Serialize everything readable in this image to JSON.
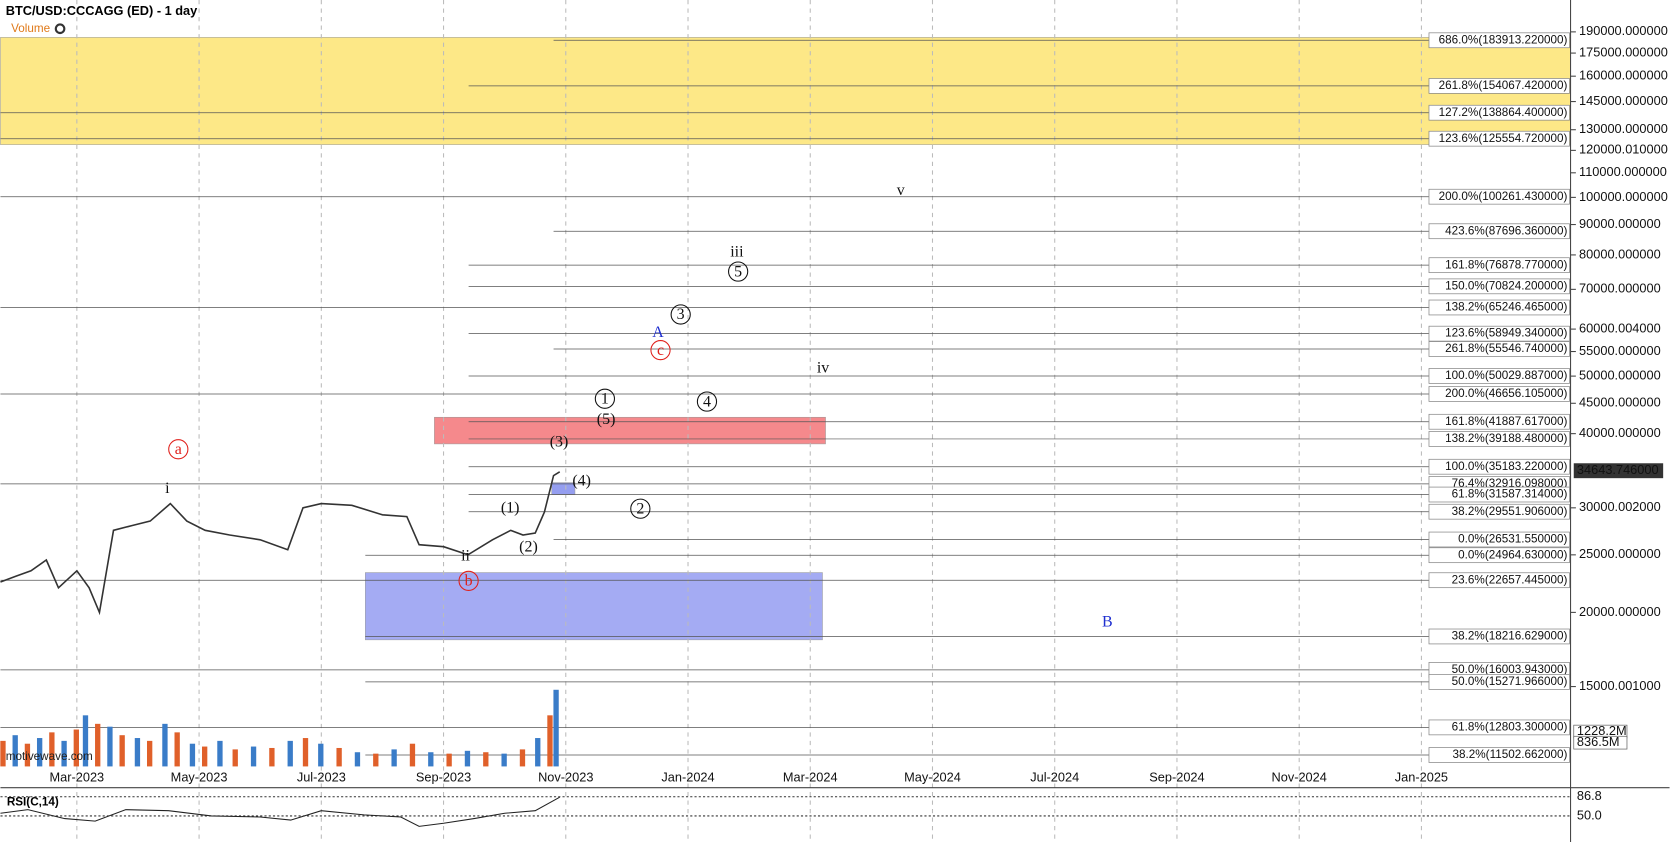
{
  "chart_data": {
    "type": "line",
    "title": "BTC/USD:CCCAGG (ED) - 1 day",
    "legend": "Volume",
    "watermark": "motivewave.com",
    "log_scale": true,
    "xlim": [
      -1.25,
      24.44
    ],
    "xticks": [
      {
        "value": 0,
        "label": "Mar-2023"
      },
      {
        "value": 2,
        "label": "May-2023"
      },
      {
        "value": 4,
        "label": "Jul-2023"
      },
      {
        "value": 6,
        "label": "Sep-2023"
      },
      {
        "value": 8,
        "label": "Nov-2023"
      },
      {
        "value": 10,
        "label": "Jan-2024"
      },
      {
        "value": 12,
        "label": "Mar-2024"
      },
      {
        "value": 14,
        "label": "May-2024"
      },
      {
        "value": 16,
        "label": "Jul-2024"
      },
      {
        "value": 18,
        "label": "Sep-2024"
      },
      {
        "value": 20,
        "label": "Nov-2024"
      },
      {
        "value": 22,
        "label": "Jan-2025"
      }
    ],
    "ylim": [
      11005,
      215000
    ],
    "yticks": [
      {
        "value": 190000,
        "label": "190000.000000"
      },
      {
        "value": 175000,
        "label": "175000.000000"
      },
      {
        "value": 160000,
        "label": "160000.000000"
      },
      {
        "value": 145000,
        "label": "145000.000000"
      },
      {
        "value": 130000,
        "label": "130000.000000"
      },
      {
        "value": 120000.01,
        "label": "120000.010000"
      },
      {
        "value": 110000,
        "label": "110000.000000"
      },
      {
        "value": 100000,
        "label": "100000.000000"
      },
      {
        "value": 90000,
        "label": "90000.000000"
      },
      {
        "value": 80000,
        "label": "80000.000000"
      },
      {
        "value": 70000,
        "label": "70000.000000"
      },
      {
        "value": 60000.004,
        "label": "60000.004000"
      },
      {
        "value": 55000,
        "label": "55000.000000"
      },
      {
        "value": 50000,
        "label": "50000.000000"
      },
      {
        "value": 45000,
        "label": "45000.000000"
      },
      {
        "value": 40000,
        "label": "40000.000000"
      },
      {
        "value": 30000.002,
        "label": "30000.002000"
      },
      {
        "value": 25000,
        "label": "25000.000000"
      },
      {
        "value": 20000,
        "label": "20000.000000"
      },
      {
        "value": 15000.001,
        "label": "15000.001000"
      }
    ],
    "series": [
      {
        "name": "BTC/USD",
        "color": "#333333",
        "x": [
          -1.25,
          -1.0,
          -0.75,
          -0.5,
          -0.3,
          0.0,
          0.2,
          0.37,
          0.6,
          0.9,
          1.2,
          1.53,
          1.8,
          2.1,
          2.5,
          3.0,
          3.45,
          3.7,
          4.0,
          4.5,
          5.0,
          5.4,
          5.6,
          6.0,
          6.4,
          6.8,
          7.1,
          7.3,
          7.5,
          7.65,
          7.8,
          7.9
        ],
        "values": [
          22500,
          23000,
          23500,
          24500,
          22000,
          23500,
          22000,
          20000,
          27500,
          28000,
          28500,
          30500,
          28500,
          27500,
          27000,
          26500,
          25500,
          30000,
          30500,
          30300,
          29200,
          29000,
          26000,
          25800,
          25000,
          26500,
          27500,
          27000,
          27200,
          29500,
          34000,
          34500
        ]
      }
    ],
    "current_price": {
      "value": 34643.746,
      "label": "34643.746000"
    },
    "zones": [
      {
        "color": "#fde67a",
        "from": -1.25,
        "to": 24.44,
        "low": 122700,
        "high": 186000
      },
      {
        "color": "#f47c80",
        "from": 5.85,
        "to": 12.25,
        "low": 38440,
        "high": 42630
      },
      {
        "color": "#9aa2f2",
        "from": 4.72,
        "to": 12.2,
        "low": 17980,
        "high": 23340
      },
      {
        "color": "#8a94ee",
        "from": 7.77,
        "to": 8.15,
        "low": 31580,
        "high": 33080
      }
    ],
    "fib_levels": [
      {
        "label": "686.0%(183913.220000)",
        "price": 183913.22,
        "from": 7.8
      },
      {
        "label": "261.8%(154067.420000)",
        "price": 154067.42,
        "from": 6.41
      },
      {
        "label": "127.2%(138864.400000)",
        "price": 138864.4,
        "from": -1.25
      },
      {
        "label": "123.6%(125554.720000)",
        "price": 125554.72,
        "from": -1.25
      },
      {
        "label": "200.0%(100261.430000)",
        "price": 100261.43,
        "from": -1.25
      },
      {
        "label": "423.6%(87696.360000)",
        "price": 87696.36,
        "from": 7.8
      },
      {
        "label": "161.8%(76878.770000)",
        "price": 76878.77,
        "from": 6.41
      },
      {
        "label": "150.0%(70824.200000)",
        "price": 70824.2,
        "from": 6.41
      },
      {
        "label": "138.2%(65246.465000)",
        "price": 65246.465,
        "from": -1.25
      },
      {
        "label": "123.6%(58949.340000)",
        "price": 58949.34,
        "from": 6.41
      },
      {
        "label": "261.8%(55546.740000)",
        "price": 55546.74,
        "from": 7.8
      },
      {
        "label": "100.0%(50029.887000)",
        "price": 50029.887,
        "from": 6.41
      },
      {
        "label": "200.0%(46656.105000)",
        "price": 46656.105,
        "from": -1.25
      },
      {
        "label": "161.8%(41887.617000)",
        "price": 41887.617,
        "from": 6.41
      },
      {
        "label": "138.2%(39188.480000)",
        "price": 39188.48,
        "from": 6.41
      },
      {
        "label": "100.0%(35183.220000)",
        "price": 35183.22,
        "from": 6.41
      },
      {
        "label": "76.4%(32916.098000)",
        "price": 32916.098,
        "from": -1.25
      },
      {
        "label": "61.8%(31587.314000)",
        "price": 31587.314,
        "from": 6.41
      },
      {
        "label": "38.2%(29551.906000)",
        "price": 29551.906,
        "from": 6.41
      },
      {
        "label": "0.0%(26531.550000)",
        "price": 26531.55,
        "from": 7.8
      },
      {
        "label": "0.0%(24964.630000)",
        "price": 24964.63,
        "from": 4.72
      },
      {
        "label": "23.6%(22657.445000)",
        "price": 22657.445,
        "from": -1.25
      },
      {
        "label": "38.2%(18216.629000)",
        "price": 18216.629,
        "from": 4.72
      },
      {
        "label": "50.0%(16003.943000)",
        "price": 16003.943,
        "from": -1.25
      },
      {
        "label": "50.0%(15271.966000)",
        "price": 15271.966,
        "from": 4.72
      },
      {
        "label": "61.8%(12803.300000)",
        "price": 12803.3,
        "from": -1.25
      },
      {
        "label": "38.2%(11502.662000)",
        "price": 11502.662,
        "from": 4.72
      }
    ],
    "wave_labels": [
      {
        "text": "a",
        "x": 1.66,
        "price": 37650,
        "color": "#e0201b",
        "circled": true
      },
      {
        "text": "i",
        "x": 1.48,
        "price": 32350,
        "color": "#111111",
        "circled": false
      },
      {
        "text": "ii",
        "x": 6.36,
        "price": 24930,
        "color": "#111111",
        "circled": false
      },
      {
        "text": "b",
        "x": 6.41,
        "price": 22600,
        "color": "#e0201b",
        "circled": true
      },
      {
        "text": "(1)",
        "x": 7.09,
        "price": 30000,
        "color": "#111111",
        "circled": false
      },
      {
        "text": "(2)",
        "x": 7.39,
        "price": 25800,
        "color": "#111111",
        "circled": false
      },
      {
        "text": "(3)",
        "x": 7.89,
        "price": 38750,
        "color": "#111111",
        "circled": false
      },
      {
        "text": "(4)",
        "x": 8.26,
        "price": 33350,
        "color": "#111111",
        "circled": false
      },
      {
        "text": "(5)",
        "x": 8.66,
        "price": 42300,
        "color": "#111111",
        "circled": false
      },
      {
        "text": "1",
        "x": 8.64,
        "price": 45800,
        "color": "#111111",
        "circled": true
      },
      {
        "text": "2",
        "x": 9.22,
        "price": 29900,
        "color": "#111111",
        "circled": true
      },
      {
        "text": "3",
        "x": 9.88,
        "price": 63500,
        "color": "#111111",
        "circled": true
      },
      {
        "text": "4",
        "x": 10.31,
        "price": 45300,
        "color": "#111111",
        "circled": true
      },
      {
        "text": "5",
        "x": 10.82,
        "price": 75000,
        "color": "#111111",
        "circled": true
      },
      {
        "text": "A",
        "x": 9.51,
        "price": 59300,
        "color": "#1f2fd0",
        "circled": false
      },
      {
        "text": "c",
        "x": 9.55,
        "price": 55300,
        "color": "#e0201b",
        "circled": true
      },
      {
        "text": "iii",
        "x": 10.8,
        "price": 81000,
        "color": "#111111",
        "circled": false
      },
      {
        "text": "iv",
        "x": 12.21,
        "price": 51600,
        "color": "#111111",
        "circled": false
      },
      {
        "text": "v",
        "x": 13.48,
        "price": 102700,
        "color": "#111111",
        "circled": false
      },
      {
        "text": "B",
        "x": 16.86,
        "price": 19290,
        "color": "#1f2fd0",
        "circled": false
      }
    ],
    "volume": {
      "colors": [
        "#e0602a",
        "#3a7cc8"
      ],
      "ylim": [
        0,
        2700
      ],
      "yticks": [
        {
          "value": 1228.2,
          "label": "1228.2M"
        },
        {
          "value": 836.5,
          "label": "836.5M"
        }
      ],
      "x": [
        -1.2,
        -1.0,
        -0.8,
        -0.6,
        -0.4,
        -0.2,
        0.0,
        0.15,
        0.35,
        0.55,
        0.75,
        1.0,
        1.2,
        1.45,
        1.65,
        1.9,
        2.1,
        2.35,
        2.6,
        2.9,
        3.2,
        3.5,
        3.75,
        4.0,
        4.3,
        4.6,
        4.9,
        5.2,
        5.5,
        5.8,
        6.1,
        6.4,
        6.7,
        7.0,
        7.3,
        7.55,
        7.75,
        7.85
      ],
      "values": [
        900,
        1100,
        800,
        1000,
        1200,
        900,
        1300,
        1800,
        1500,
        1400,
        1100,
        1000,
        900,
        1500,
        1200,
        800,
        700,
        900,
        600,
        700,
        650,
        900,
        1000,
        800,
        650,
        500,
        450,
        600,
        800,
        500,
        450,
        550,
        500,
        450,
        600,
        1000,
        1800,
        2700
      ]
    },
    "rsi": {
      "label": "RSI(C,14)",
      "ylim": [
        0,
        100
      ],
      "yticks": [
        86.8,
        {
          "value": 50,
          "label": "50.0"
        }
      ],
      "x": [
        -1.25,
        -0.8,
        -0.2,
        0.3,
        0.8,
        1.5,
        2.2,
        3.0,
        3.5,
        4.0,
        4.7,
        5.3,
        5.6,
        6.0,
        6.5,
        7.0,
        7.5,
        7.9
      ],
      "values": [
        55,
        62,
        45,
        40,
        62,
        60,
        50,
        48,
        42,
        60,
        52,
        48,
        30,
        36,
        45,
        55,
        60,
        86
      ]
    }
  }
}
